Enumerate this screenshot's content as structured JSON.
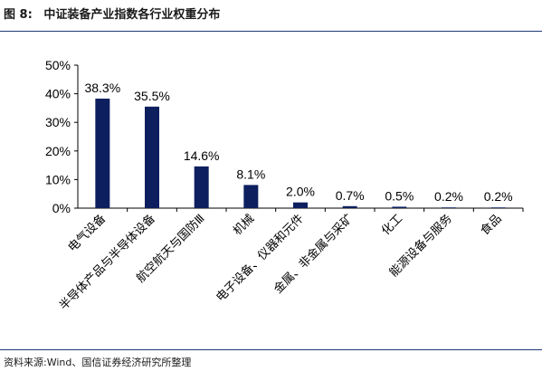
{
  "header": {
    "figure_no": "图 8:",
    "title": "中证装备产业指数各行业权重分布"
  },
  "footer": {
    "source": "资料来源:Wind、国信证券经济研究所整理"
  },
  "colors": {
    "bar": "#0d1f5e",
    "rule": "#1f3a78"
  },
  "chart_data": {
    "type": "bar",
    "categories": [
      "电气设备",
      "半导体产品与半导体设备",
      "航空航天与国防Ⅲ",
      "机械",
      "电子设备、仪器和元件",
      "金属、非金属与采矿",
      "化工",
      "能源设备与服务",
      "食品"
    ],
    "values": [
      38.3,
      35.5,
      14.6,
      8.1,
      2.0,
      0.7,
      0.5,
      0.2,
      0.2
    ],
    "value_labels": [
      "38.3%",
      "35.5%",
      "14.6%",
      "8.1%",
      "2.0%",
      "0.7%",
      "0.5%",
      "0.2%",
      "0.2%"
    ],
    "yticks": [
      "0%",
      "10%",
      "20%",
      "30%",
      "40%",
      "50%"
    ],
    "ylim": [
      0,
      50
    ],
    "grid": false,
    "legend": "none"
  }
}
